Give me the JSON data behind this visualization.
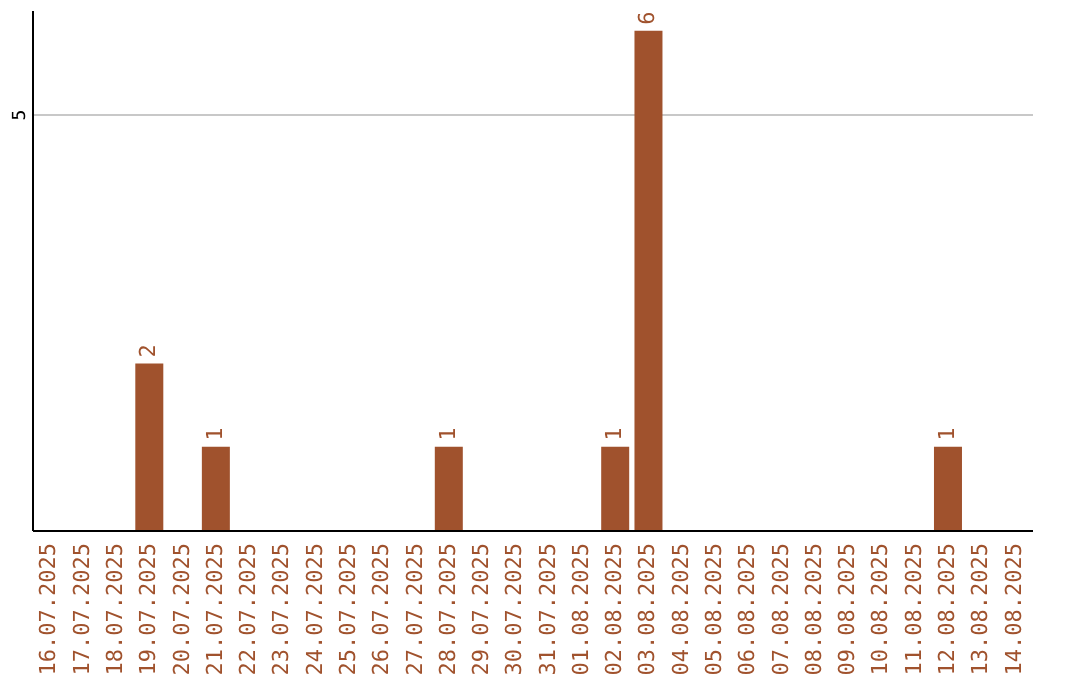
{
  "chart_data": {
    "type": "bar",
    "categories": [
      "16.07.2025",
      "17.07.2025",
      "18.07.2025",
      "19.07.2025",
      "20.07.2025",
      "21.07.2025",
      "22.07.2025",
      "23.07.2025",
      "24.07.2025",
      "25.07.2025",
      "26.07.2025",
      "27.07.2025",
      "28.07.2025",
      "29.07.2025",
      "30.07.2025",
      "31.07.2025",
      "01.08.2025",
      "02.08.2025",
      "03.08.2025",
      "04.08.2025",
      "05.08.2025",
      "06.08.2025",
      "07.08.2025",
      "08.08.2025",
      "09.08.2025",
      "10.08.2025",
      "11.08.2025",
      "12.08.2025",
      "13.08.2025",
      "14.08.2025"
    ],
    "values": [
      0,
      0,
      0,
      2,
      0,
      1,
      0,
      0,
      0,
      0,
      0,
      0,
      1,
      0,
      0,
      0,
      0,
      1,
      6,
      0,
      0,
      0,
      0,
      0,
      0,
      0,
      0,
      1,
      0,
      0
    ],
    "value_labels": [
      null,
      null,
      null,
      "2",
      null,
      "1",
      null,
      null,
      null,
      null,
      null,
      null,
      "1",
      null,
      null,
      null,
      null,
      "1",
      "6",
      null,
      null,
      null,
      null,
      null,
      null,
      null,
      null,
      "1",
      null,
      null
    ],
    "color": "#a0522d",
    "ylim": [
      0,
      6.25
    ],
    "yticks": [
      5
    ],
    "grid": "y"
  }
}
